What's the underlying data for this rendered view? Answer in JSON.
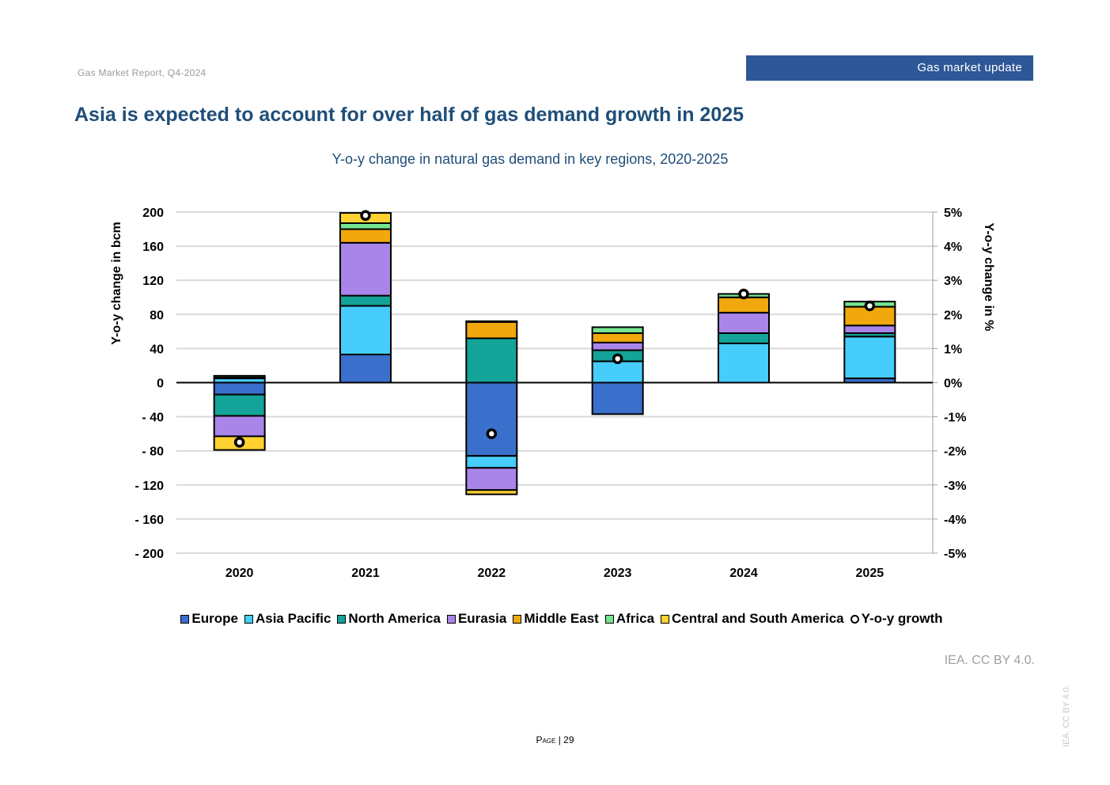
{
  "header": {
    "report": "Gas Market Report, Q4-2024",
    "section": "Gas market update"
  },
  "title": "Asia is expected to account for over half of gas demand growth in 2025",
  "footer": {
    "credit": "IEA. CC BY 4.0.",
    "page_label": "Page",
    "page_sep": " | ",
    "page_number": "29",
    "side_credit": "IEA. CC BY 4.0."
  },
  "chart_data": {
    "type": "bar",
    "stacked": true,
    "title": "Y-o-y change in natural gas demand in key regions, 2020-2025",
    "ylabel": "Y-o-y change in bcm",
    "y2label": "Y-o-y change in %",
    "ylim": [
      -200,
      200
    ],
    "y2lim": [
      -5,
      5
    ],
    "yticks": [
      "200",
      "160",
      "120",
      "80",
      "40",
      "0",
      "- 40",
      "- 80",
      "- 120",
      "- 160",
      "- 200"
    ],
    "y2ticks": [
      "5%",
      "4%",
      "3%",
      "2%",
      "1%",
      "0%",
      "-1%",
      "-2%",
      "-3%",
      "-4%",
      "-5%"
    ],
    "categories": [
      "2020",
      "2021",
      "2022",
      "2023",
      "2024",
      "2025"
    ],
    "series": [
      {
        "name": "Europe",
        "color": "#3a6fcb",
        "values": [
          -14,
          33,
          -86,
          -37,
          0,
          5
        ]
      },
      {
        "name": "Asia Pacific",
        "color": "#46cdfb",
        "values": [
          5,
          57,
          -14,
          25,
          46,
          49
        ]
      },
      {
        "name": "North America",
        "color": "#14a398",
        "values": [
          -25,
          12,
          52,
          13,
          12,
          4
        ]
      },
      {
        "name": "Eurasia",
        "color": "#a985ea",
        "values": [
          -24,
          62,
          -26,
          9,
          24,
          9
        ]
      },
      {
        "name": "Middle East",
        "color": "#f1a80c",
        "values": [
          1,
          16,
          19,
          11,
          18,
          22
        ]
      },
      {
        "name": "Africa",
        "color": "#76e692",
        "values": [
          2,
          7,
          1,
          7,
          4,
          6
        ]
      },
      {
        "name": "Central and South America",
        "color": "#ffd232",
        "values": [
          -16,
          12,
          -5,
          0,
          0,
          0
        ]
      }
    ],
    "line": {
      "name": "Y-o-y growth",
      "values": [
        -1.75,
        4.9,
        -1.5,
        0.7,
        2.6,
        2.25
      ]
    },
    "legend_position": "bottom"
  }
}
